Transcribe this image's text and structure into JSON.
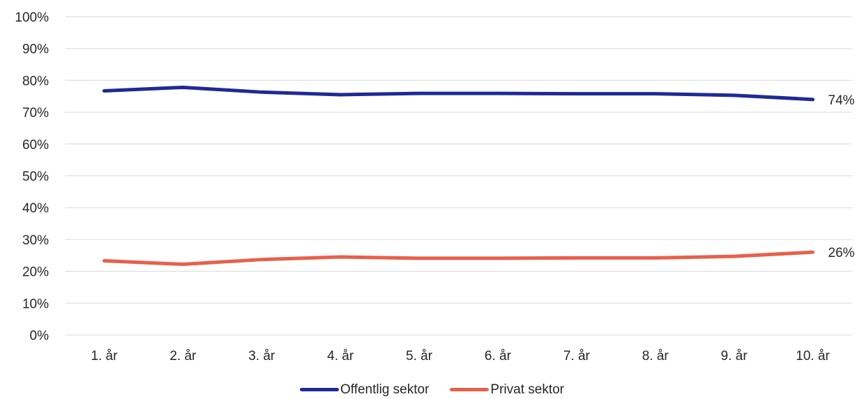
{
  "chart_data": {
    "type": "line",
    "categories": [
      "1. år",
      "2. år",
      "3. år",
      "4. år",
      "5. år",
      "6. år",
      "7. år",
      "8. år",
      "9. år",
      "10. år"
    ],
    "series": [
      {
        "name": "Offentlig sektor",
        "color": "#1f2a96",
        "values": [
          76.7,
          77.8,
          76.3,
          75.5,
          75.9,
          75.9,
          75.8,
          75.8,
          75.3,
          74.0
        ],
        "end_label": "74%"
      },
      {
        "name": "Privat sektor",
        "color": "#e8604a",
        "values": [
          23.3,
          22.2,
          23.7,
          24.5,
          24.1,
          24.1,
          24.2,
          24.2,
          24.7,
          26.0
        ],
        "end_label": "26%"
      }
    ],
    "ylim": [
      0,
      100
    ],
    "yticks": [
      "0%",
      "10%",
      "20%",
      "30%",
      "40%",
      "50%",
      "60%",
      "70%",
      "80%",
      "90%",
      "100%"
    ],
    "grid": true,
    "legend_position": "bottom"
  }
}
